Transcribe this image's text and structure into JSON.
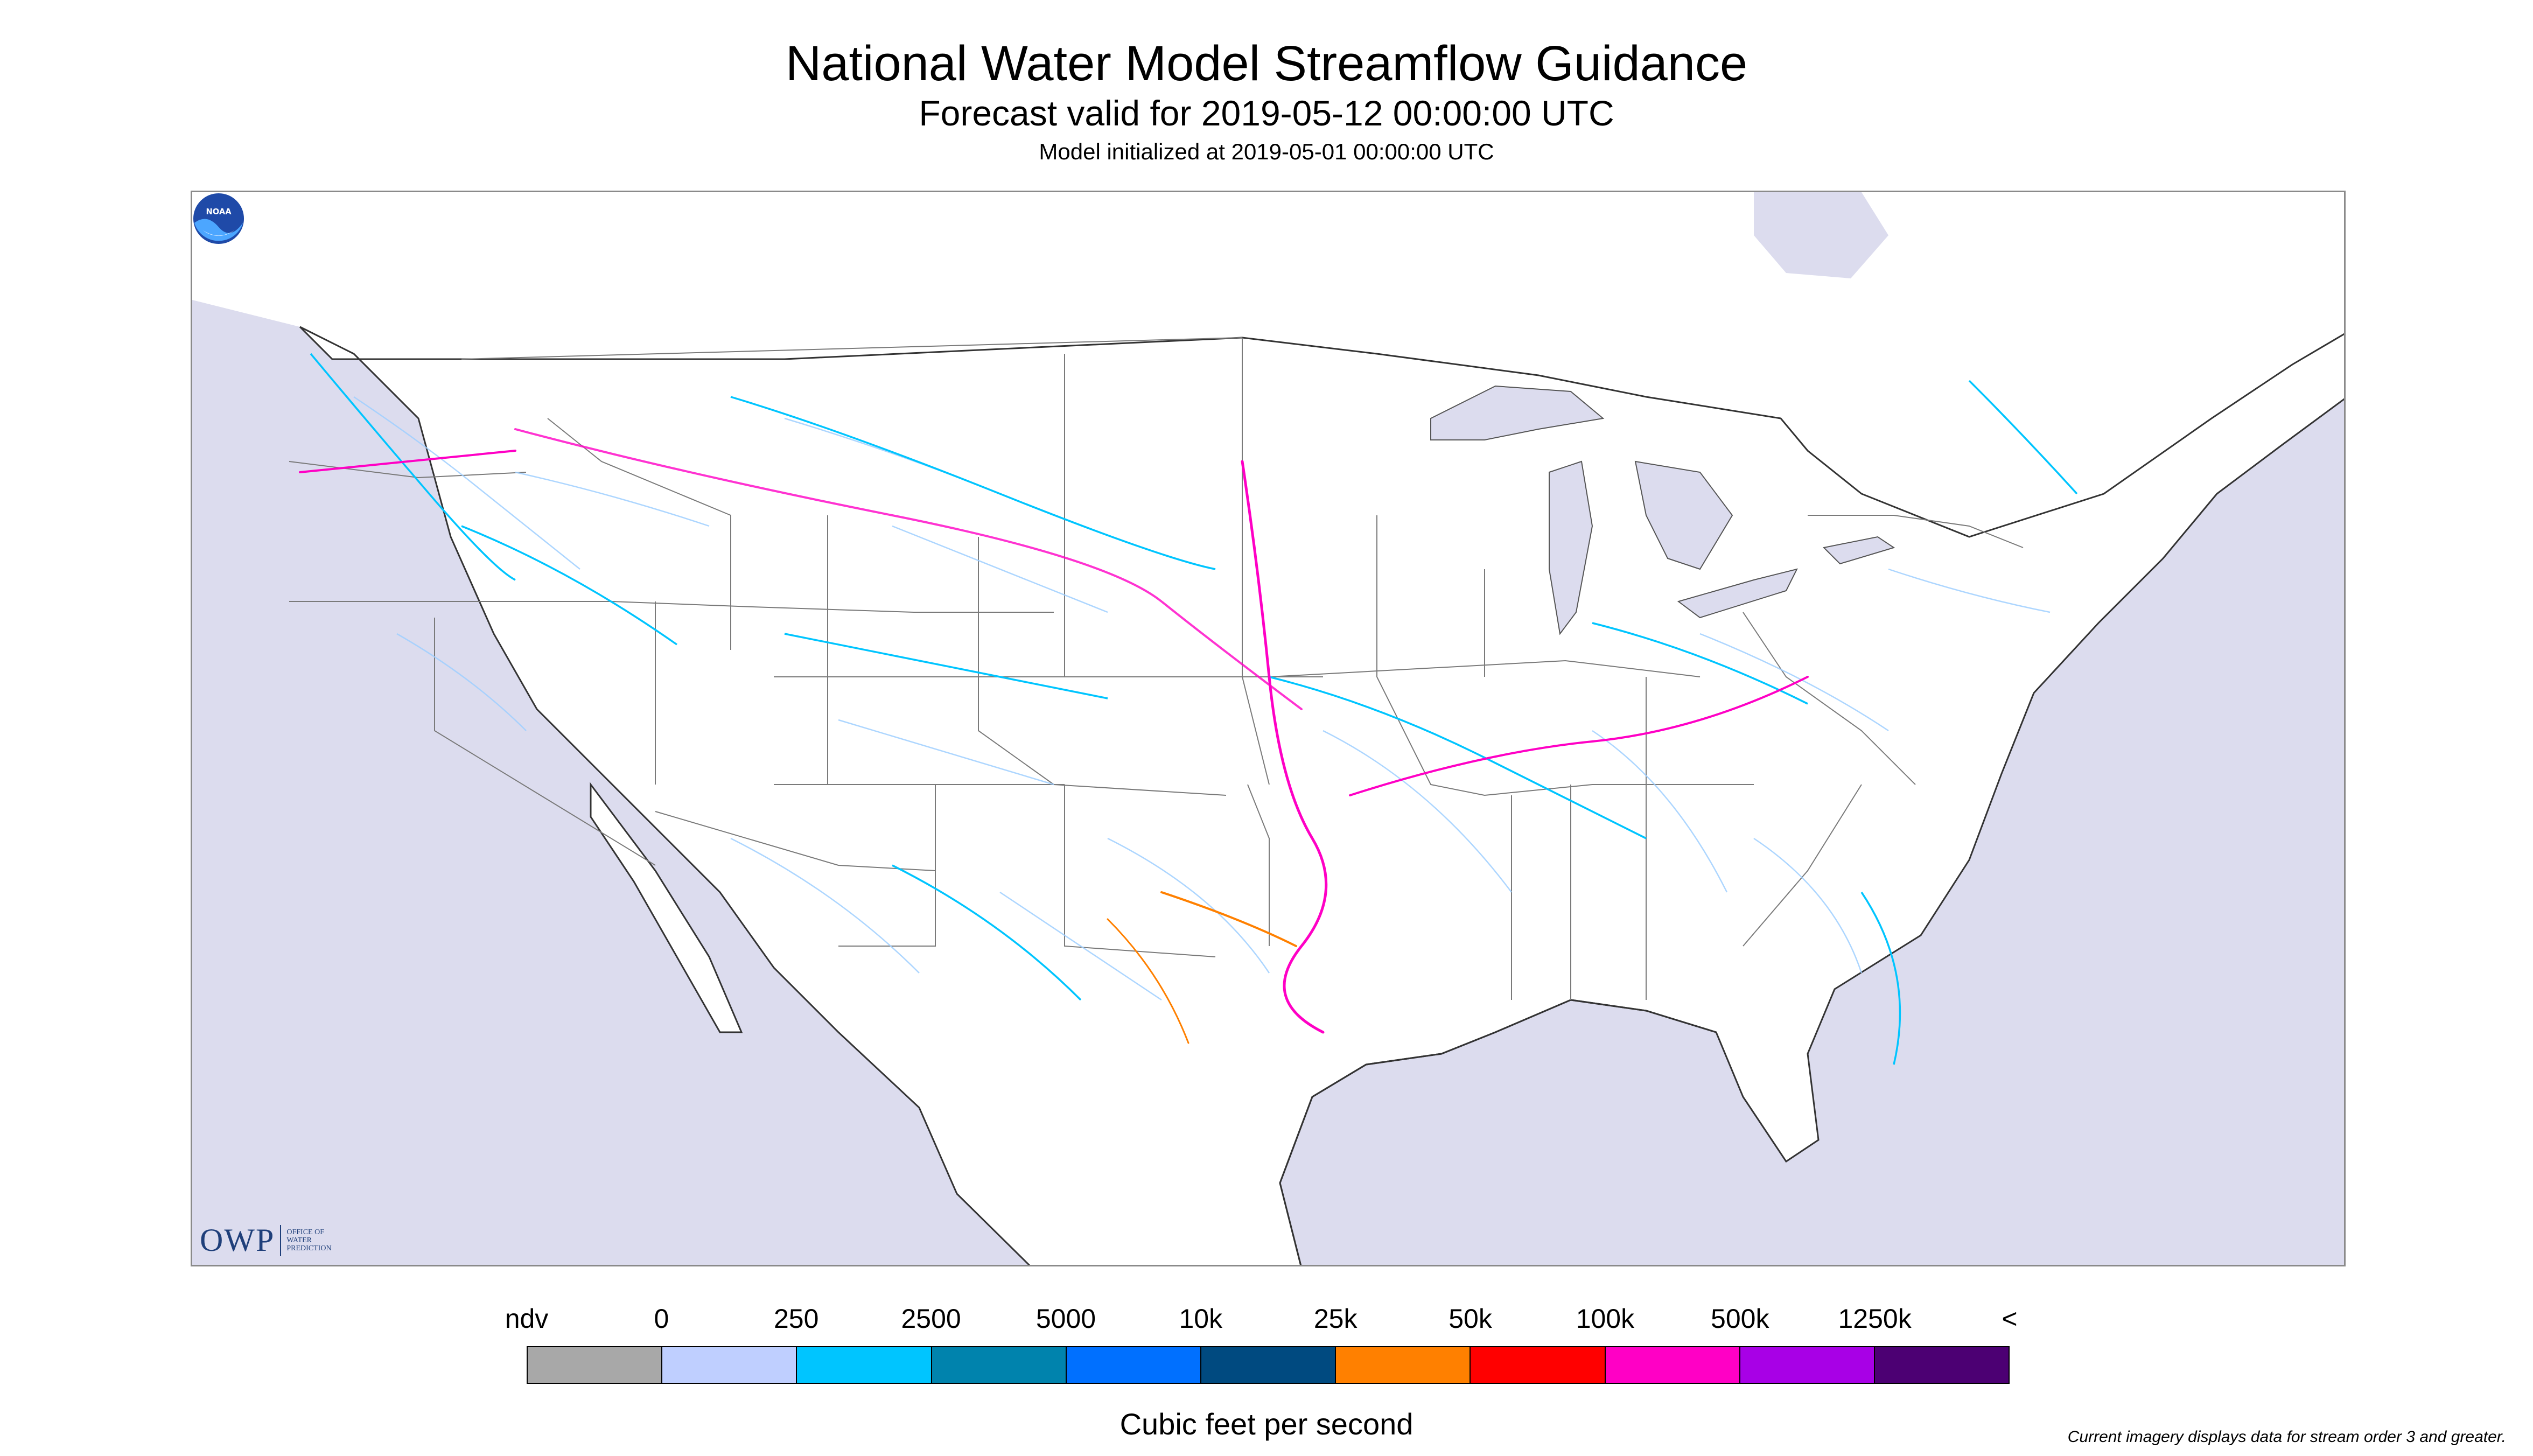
{
  "title": "National Water Model Streamflow Guidance",
  "subtitle": "Forecast valid for 2019-05-12 00:00:00 UTC",
  "init": "Model initialized at 2019-05-01 00:00:00 UTC",
  "legend": {
    "labels": [
      "ndv",
      "0",
      "250",
      "2500",
      "5000",
      "10k",
      "25k",
      "50k",
      "100k",
      "500k",
      "1250k",
      "<"
    ],
    "colors": [
      "#a8a8a8",
      "#bfcfff",
      "#00c5ff",
      "#0083ad",
      "#0070ff",
      "#004a80",
      "#ff8000",
      "#ff0000",
      "#ff00c5",
      "#a800e6",
      "#4c0073"
    ],
    "units": "Cubic feet per second"
  },
  "note": "Current imagery displays data for stream order 3 and greater.",
  "logos": {
    "owp_mark": "OWP",
    "owp_text": "OFFICE OF\nWATER\nPREDICTION",
    "noaa": "NOAA"
  },
  "map_colors": {
    "water": "#dcdcee",
    "land": "#ffffff",
    "borders": "#7a7a7a"
  }
}
